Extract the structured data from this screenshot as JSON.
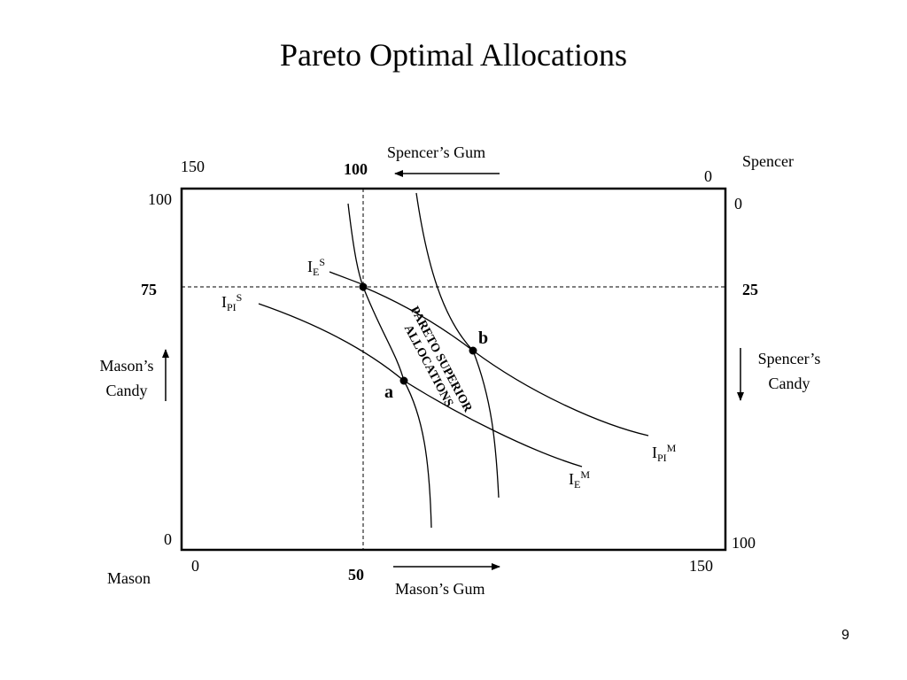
{
  "title": "Pareto Optimal Allocations",
  "page_number": "9",
  "owners": {
    "bottom_left": "Mason",
    "top_right": "Spencer"
  },
  "axes": {
    "top_good": "Spencer’s Gum",
    "bottom_good": "Mason’s Gum",
    "left_good_line1": "Mason’s",
    "left_good_line2": "Candy",
    "right_good_line1": "Spencer’s",
    "right_good_line2": "Candy"
  },
  "ticks": {
    "top_150": "150",
    "top_100": "100",
    "top_0": "0",
    "left_100": "100",
    "left_75": "75",
    "left_0": "0",
    "right_0": "0",
    "right_25": "25",
    "right_100": "100",
    "bottom_0": "0",
    "bottom_50": "50",
    "bottom_150": "150"
  },
  "curves": {
    "IES": {
      "base": "I",
      "sub": "E",
      "sup": "S"
    },
    "IPIS": {
      "base": "I",
      "sub": "PI",
      "sup": "S"
    },
    "IPIM": {
      "base": "I",
      "sub": "PI",
      "sup": "M"
    },
    "IEM": {
      "base": "I",
      "sub": "E",
      "sup": "M"
    }
  },
  "points": {
    "a": "a",
    "b": "b"
  },
  "region_label_line1": "PARETO SUPERIOR",
  "region_label_line2": "ALLOCATIONS"
}
